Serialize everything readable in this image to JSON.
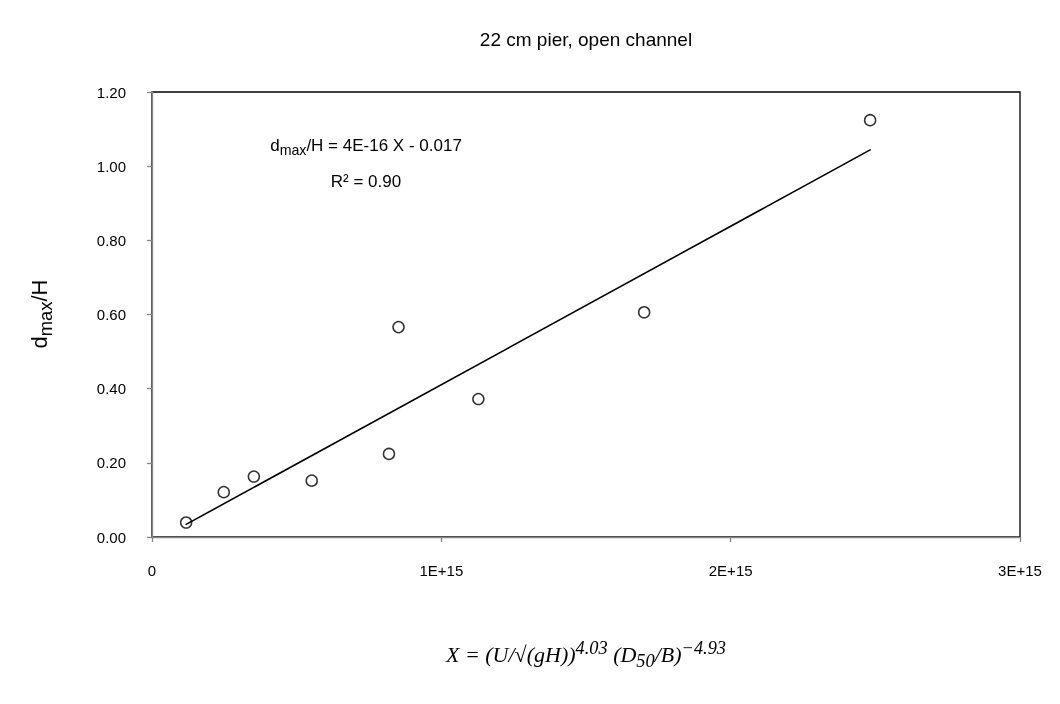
{
  "chart_data": {
    "type": "scatter",
    "title": "22 cm pier, open channel",
    "xlabel": "X = (U/√(gH))$^{4.03}$ (D$_{50}$/B)$^{−4.93}$",
    "ylabel": "d$_{max}$/H",
    "annotations": [
      "d$_{max}$/H = 4E-16 X - 0.017",
      "R² = 0.90"
    ],
    "series": [
      {
        "color": "#000000",
        "marker": "circle",
        "x": [
          118000000000000.0,
          248000000000000.0,
          352000000000000.0,
          552000000000000.0,
          819000000000000.0,
          852000000000000.0,
          1128000000000000.0,
          1701000000000000.0,
          2482000000000000.0
        ],
        "values": [
          0.039,
          0.121,
          0.163,
          0.152,
          0.224,
          0.566,
          0.372,
          0.606,
          1.124
        ]
      },
      {
        "type": "line",
        "color": "#000000",
        "marker": "none",
        "line_style": "solid",
        "x": [
          118000000000000.0,
          2482000000000000.0
        ],
        "values": [
          0.034,
          1.044
        ]
      }
    ],
    "xlim": [
      0,
      3000000000000000.0
    ],
    "xticks": [
      0,
      {
        "value": 1000000000000000.0,
        "label": "1E+15"
      },
      {
        "value": 2000000000000000.0,
        "label": "2E+15"
      },
      {
        "value": 3000000000000000.0,
        "label": "3E+15"
      }
    ],
    "ylim": [
      0,
      1.2
    ],
    "yticks": [
      {
        "value": 0,
        "label": "0.00"
      },
      {
        "value": 0.2,
        "label": "0.20"
      },
      {
        "value": 0.4,
        "label": "0.40"
      },
      {
        "value": 0.6,
        "label": "0.60"
      },
      {
        "value": 0.8,
        "label": "0.80"
      },
      {
        "value": 1.0,
        "label": "1.00"
      },
      {
        "value": 1.2,
        "label": "1.20"
      }
    ],
    "grid": false
  }
}
